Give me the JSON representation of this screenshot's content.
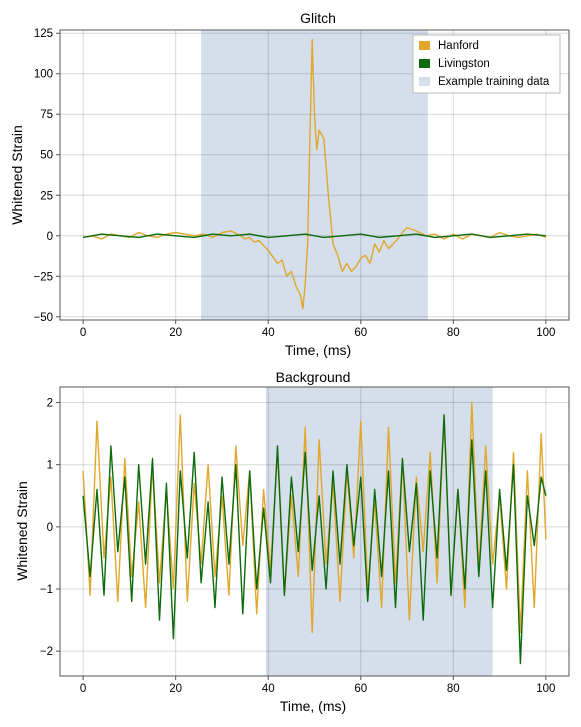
{
  "colors": {
    "hanford": "#e1a72b",
    "livingston": "#0c6b0c",
    "training_region": "#d4dfeb",
    "grid": "#cfcfcf",
    "frame": "#555555"
  },
  "chart_data": [
    {
      "type": "line",
      "title": "Glitch",
      "xlabel": "Time, (ms)",
      "ylabel": "Whitened Strain",
      "xlim": [
        -5,
        105
      ],
      "ylim": [
        -52,
        127
      ],
      "xticks": [
        0,
        20,
        40,
        60,
        80,
        100
      ],
      "yticks": [
        -50,
        -25,
        0,
        25,
        50,
        75,
        100,
        125
      ],
      "grid": true,
      "legend_position": "top-right",
      "shaded_region": {
        "name": "Example training data",
        "x": [
          25.5,
          74.5
        ]
      },
      "series": [
        {
          "name": "Hanford",
          "color": "hanford",
          "x": [
            0,
            2,
            4,
            6,
            8,
            10,
            12,
            14,
            16,
            18,
            20,
            22,
            24,
            26,
            28,
            30,
            32,
            34,
            35,
            36,
            37,
            38,
            39,
            40,
            41,
            42,
            43,
            44,
            45,
            46,
            47,
            47.5,
            48,
            48.5,
            49,
            49.5,
            50,
            50.5,
            51,
            52,
            53,
            54,
            55,
            56,
            57,
            58,
            59,
            60,
            61,
            62,
            63,
            64,
            65,
            66,
            67,
            68,
            69,
            70,
            72,
            74,
            76,
            78,
            80,
            82,
            84,
            86,
            88,
            90,
            92,
            94,
            96,
            98,
            100
          ],
          "y": [
            -1,
            0,
            -2,
            1,
            0,
            -1,
            2,
            0,
            -1,
            1,
            2,
            1,
            0,
            1,
            -1,
            2,
            3,
            0,
            -2,
            -1,
            -4,
            -3,
            -6,
            -9,
            -13,
            -17,
            -15,
            -25,
            -22,
            -31,
            -37,
            -45,
            -30,
            -5,
            60,
            121,
            75,
            53,
            65,
            60,
            25,
            -5,
            -12,
            -22,
            -17,
            -22,
            -19,
            -14,
            -12,
            -17,
            -5,
            -10,
            -3,
            -8,
            -5,
            -2,
            2,
            5,
            3,
            0,
            1,
            -2,
            1,
            -2,
            1,
            0,
            -1,
            2,
            0,
            -1,
            0,
            1,
            -1
          ]
        },
        {
          "name": "Livingston",
          "color": "livingston",
          "x": [
            0,
            4,
            8,
            12,
            16,
            20,
            24,
            28,
            32,
            36,
            40,
            44,
            48,
            52,
            56,
            60,
            64,
            68,
            72,
            76,
            80,
            84,
            88,
            92,
            96,
            100
          ],
          "y": [
            -1,
            1,
            0,
            -1,
            1,
            0,
            -1,
            1,
            0,
            1,
            -1,
            0,
            1,
            -1,
            0,
            1,
            -1,
            0,
            1,
            -1,
            0,
            1,
            -1,
            0,
            1,
            0
          ]
        }
      ]
    },
    {
      "type": "line",
      "title": "Background",
      "xlabel": "Time, (ms)",
      "ylabel": "Whitened Strain",
      "xlim": [
        -5,
        105
      ],
      "ylim": [
        -2.4,
        2.25
      ],
      "xticks": [
        0,
        20,
        40,
        60,
        80,
        100
      ],
      "yticks": [
        -2,
        -1,
        0,
        1,
        2
      ],
      "grid": true,
      "shaded_region": {
        "name": "Example training data",
        "x": [
          39.5,
          88.5
        ]
      },
      "series": [
        {
          "name": "Hanford",
          "color": "hanford",
          "x": [
            0,
            1.5,
            3,
            4.5,
            6,
            7.5,
            9,
            10.5,
            12,
            13.5,
            15,
            16.5,
            18,
            19.5,
            21,
            22.5,
            24,
            25.5,
            27,
            28.5,
            30,
            31.5,
            33,
            34.5,
            36,
            37.5,
            39,
            40.5,
            42,
            43.5,
            45,
            46.5,
            48,
            49.5,
            51,
            52.5,
            54,
            55.5,
            57,
            58.5,
            60,
            61.5,
            63,
            64.5,
            66,
            67.5,
            69,
            70.5,
            72,
            73.5,
            75,
            76.5,
            78,
            79.5,
            81,
            82.5,
            84,
            85.5,
            87,
            88.5,
            90,
            91.5,
            93,
            94.5,
            96,
            97.5,
            99,
            100
          ],
          "y": [
            0.9,
            -1.1,
            1.7,
            -0.5,
            0.8,
            -1.2,
            1.1,
            -0.8,
            0.4,
            -1.3,
            1.0,
            -0.9,
            0.6,
            -1.0,
            1.8,
            -1.2,
            0.7,
            -0.6,
            1.0,
            -0.8,
            0.5,
            -1.1,
            1.3,
            -0.3,
            0.9,
            -1.4,
            0.6,
            -0.7,
            1.2,
            -1.1,
            0.5,
            -0.8,
            1.6,
            -1.7,
            1.4,
            -0.6,
            0.7,
            -1.2,
            0.9,
            -0.5,
            1.7,
            -1.0,
            0.4,
            -1.3,
            1.6,
            -0.9,
            1.1,
            -1.5,
            0.8,
            -0.4,
            1.2,
            -0.9,
            1.8,
            -1.1,
            0.6,
            -1.3,
            2.0,
            -0.7,
            1.3,
            -0.6,
            0.5,
            -1.0,
            1.2,
            -1.7,
            0.9,
            -1.3,
            1.5,
            -0.2
          ]
        },
        {
          "name": "Livingston",
          "color": "livingston",
          "x": [
            0,
            1.5,
            3,
            4.5,
            6,
            7.5,
            9,
            10.5,
            12,
            13.5,
            15,
            16.5,
            18,
            19.5,
            21,
            22.5,
            24,
            25.5,
            27,
            28.5,
            30,
            31.5,
            33,
            34.5,
            36,
            37.5,
            39,
            40.5,
            42,
            43.5,
            45,
            46.5,
            48,
            49.5,
            51,
            52.5,
            54,
            55.5,
            57,
            58.5,
            60,
            61.5,
            63,
            64.5,
            66,
            67.5,
            69,
            70.5,
            72,
            73.5,
            75,
            76.5,
            78,
            79.5,
            81,
            82.5,
            84,
            85.5,
            87,
            88.5,
            90,
            91.5,
            93,
            94.5,
            96,
            97.5,
            99,
            100
          ],
          "y": [
            0.5,
            -0.8,
            0.6,
            -1.1,
            1.3,
            -0.4,
            0.8,
            -1.2,
            1.0,
            -0.6,
            1.1,
            -1.5,
            0.7,
            -1.8,
            0.9,
            -0.5,
            1.2,
            -0.9,
            0.4,
            -1.3,
            0.8,
            -0.6,
            1.0,
            -1.4,
            0.9,
            -1.0,
            0.3,
            -0.9,
            1.3,
            -1.1,
            0.8,
            -0.4,
            1.2,
            -0.7,
            0.5,
            -1.0,
            0.9,
            -0.6,
            1.0,
            -0.3,
            0.8,
            -1.2,
            0.6,
            -0.8,
            0.9,
            -1.3,
            1.1,
            -0.4,
            0.7,
            -1.5,
            0.9,
            -0.5,
            1.8,
            -1.1,
            0.6,
            -1.0,
            1.4,
            -0.8,
            0.9,
            -1.3,
            0.6,
            -0.7,
            1.0,
            -2.2,
            0.5,
            -0.3,
            0.8,
            0.5
          ]
        }
      ]
    }
  ]
}
